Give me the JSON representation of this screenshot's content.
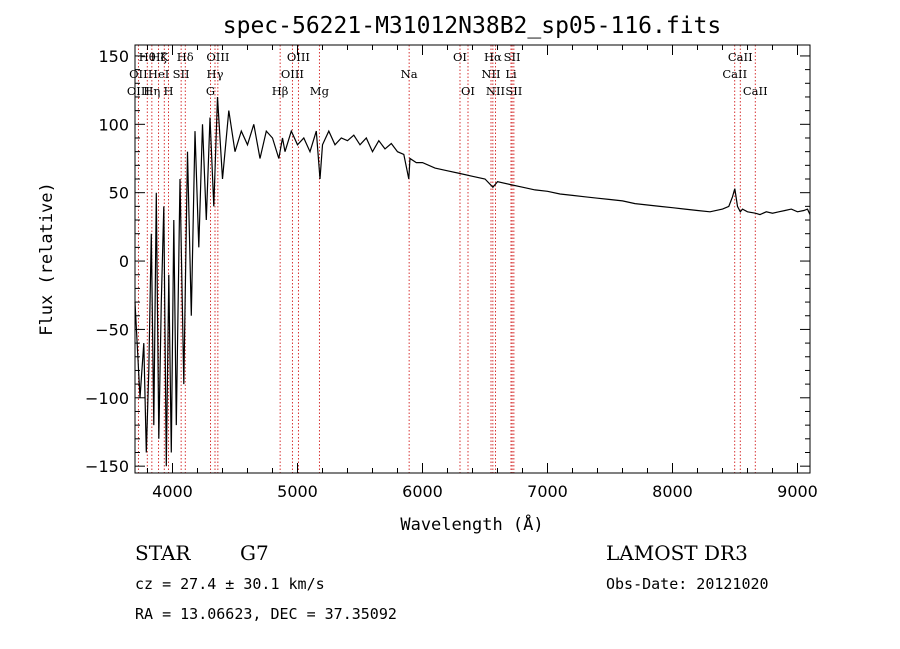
{
  "chart_data": {
    "type": "line",
    "title": "spec-56221-M31012N38B2_sp05-116.fits",
    "xlabel": "Wavelength (Å)",
    "ylabel": "Flux (relative)",
    "xlim": [
      3700,
      9100
    ],
    "ylim": [
      -155,
      158
    ],
    "xticks": [
      4000,
      5000,
      6000,
      7000,
      8000,
      9000
    ],
    "xtick_labels": [
      "4000",
      "5000",
      "6000",
      "7000",
      "8000",
      "9000"
    ],
    "yticks": [
      -150,
      -100,
      -50,
      0,
      50,
      100,
      150
    ],
    "ytick_labels": [
      "−150",
      "−100",
      "−50",
      "0",
      "50",
      "100",
      "150"
    ],
    "series": [
      {
        "name": "spectrum",
        "x": [
          3700,
          3740,
          3770,
          3790,
          3810,
          3830,
          3850,
          3870,
          3890,
          3910,
          3930,
          3950,
          3970,
          3990,
          4010,
          4030,
          4060,
          4090,
          4120,
          4150,
          4180,
          4210,
          4240,
          4270,
          4300,
          4330,
          4360,
          4400,
          4450,
          4500,
          4550,
          4600,
          4650,
          4700,
          4750,
          4800,
          4850,
          4880,
          4900,
          4950,
          5000,
          5050,
          5100,
          5150,
          5180,
          5200,
          5250,
          5300,
          5350,
          5400,
          5450,
          5500,
          5550,
          5600,
          5650,
          5700,
          5750,
          5800,
          5850,
          5890,
          5900,
          5950,
          6000,
          6100,
          6200,
          6300,
          6400,
          6500,
          6563,
          6600,
          6700,
          6800,
          6900,
          7000,
          7100,
          7200,
          7300,
          7400,
          7500,
          7600,
          7700,
          7800,
          7900,
          8000,
          8100,
          8200,
          8300,
          8400,
          8450,
          8480,
          8498,
          8520,
          8542,
          8560,
          8600,
          8662,
          8700,
          8750,
          8800,
          8850,
          8900,
          8950,
          9000,
          9050,
          9080,
          9100
        ],
        "y": [
          -30,
          -100,
          -60,
          -140,
          -80,
          20,
          -120,
          50,
          -130,
          -30,
          40,
          -150,
          -10,
          -140,
          30,
          -120,
          60,
          -90,
          80,
          -40,
          95,
          10,
          100,
          30,
          105,
          40,
          120,
          60,
          110,
          80,
          95,
          85,
          100,
          75,
          95,
          90,
          75,
          90,
          80,
          95,
          85,
          90,
          80,
          95,
          60,
          85,
          95,
          85,
          90,
          88,
          92,
          85,
          90,
          80,
          88,
          82,
          86,
          80,
          78,
          60,
          75,
          72,
          72,
          68,
          66,
          64,
          62,
          60,
          54,
          58,
          56,
          54,
          52,
          51,
          49,
          48,
          47,
          46,
          45,
          44,
          42,
          41,
          40,
          39,
          38,
          37,
          36,
          38,
          40,
          47,
          53,
          40,
          36,
          38,
          36,
          35,
          34,
          36,
          35,
          36,
          37,
          38,
          36,
          37,
          38,
          34
        ]
      }
    ],
    "lines": [
      {
        "name": "Hθ",
        "w": 3798,
        "row": 0
      },
      {
        "name": "OII",
        "w": 3727,
        "row": 1
      },
      {
        "name": "OIII",
        "w": 3727,
        "row": 2
      },
      {
        "name": "Hζ",
        "w": 3889,
        "row": 0
      },
      {
        "name": "HeI",
        "w": 3889,
        "row": 1
      },
      {
        "name": "Hη",
        "w": 3835,
        "row": 2
      },
      {
        "name": "K",
        "w": 3934,
        "row": 0
      },
      {
        "name": "SII",
        "w": 4069,
        "row": 1
      },
      {
        "name": "H",
        "w": 3968,
        "row": 2
      },
      {
        "name": "Hδ",
        "w": 4102,
        "row": 0
      },
      {
        "name": "OIII",
        "w": 4363,
        "row": 0
      },
      {
        "name": "Hγ",
        "w": 4340,
        "row": 1
      },
      {
        "name": "G",
        "w": 4304,
        "row": 2
      },
      {
        "name": "Hβ",
        "w": 4861,
        "row": 2
      },
      {
        "name": "OIII",
        "w": 5007,
        "row": 0
      },
      {
        "name": "OIII",
        "w": 4959,
        "row": 1
      },
      {
        "name": "Mg",
        "w": 5175,
        "row": 2
      },
      {
        "name": "Na",
        "w": 5893,
        "row": 1
      },
      {
        "name": "OI",
        "w": 6300,
        "row": 0
      },
      {
        "name": "OI",
        "w": 6364,
        "row": 2
      },
      {
        "name": "Hα",
        "w": 6563,
        "row": 0
      },
      {
        "name": "SII",
        "w": 6717,
        "row": 0
      },
      {
        "name": "NII",
        "w": 6548,
        "row": 1
      },
      {
        "name": "Li",
        "w": 6708,
        "row": 1
      },
      {
        "name": "NII",
        "w": 6584,
        "row": 2
      },
      {
        "name": "SII",
        "w": 6731,
        "row": 2
      },
      {
        "name": "CaII",
        "w": 8542,
        "row": 0
      },
      {
        "name": "CaII",
        "w": 8498,
        "row": 1
      },
      {
        "name": "CaII",
        "w": 8662,
        "row": 2
      }
    ],
    "line_color": "#000000",
    "marker_color": "#cc0000"
  },
  "info": {
    "object_class": "STAR",
    "subclass": "G7",
    "survey": "LAMOST DR3",
    "velocity": "cz = 27.4 ± 30.1 km/s",
    "obs_date": "Obs-Date: 20121020",
    "coords": "RA =  13.06623, DEC =  37.35092"
  }
}
